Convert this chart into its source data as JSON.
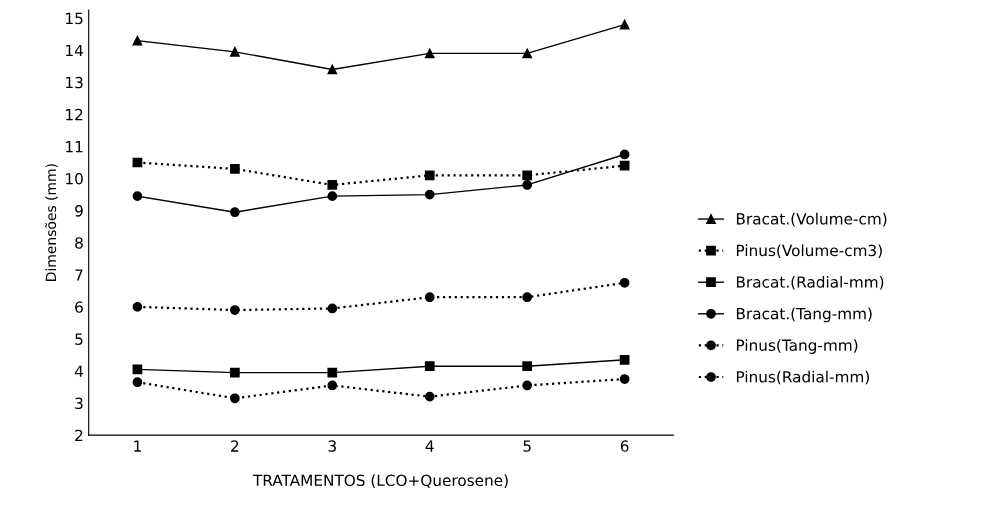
{
  "chart_data": {
    "type": "line",
    "xlabel": "TRATAMENTOS (LCO+Querosene)",
    "ylabel": "Dimensões (mm)",
    "x": [
      1,
      2,
      3,
      4,
      5,
      6
    ],
    "xlim": [
      0.5,
      6.5
    ],
    "xticks": [
      1,
      2,
      3,
      4,
      5,
      6
    ],
    "ylim": [
      2,
      15.25
    ],
    "yticks": [
      2,
      3,
      4,
      5,
      6,
      7,
      8,
      9,
      10,
      11,
      12,
      13,
      14,
      15
    ],
    "grid": false,
    "legend": "right",
    "series": [
      {
        "name": "Bracat.(Volume-cm)",
        "color": "#000000",
        "marker": "triangle",
        "line_style": "solid",
        "values": [
          14.3,
          13.95,
          13.4,
          13.9,
          13.9,
          14.8
        ]
      },
      {
        "name": "Pinus(Volume-cm3)",
        "color": "#000000",
        "marker": "square",
        "line_style": "dotted",
        "values": [
          10.5,
          10.3,
          9.8,
          10.1,
          10.1,
          10.4
        ]
      },
      {
        "name": "Bracat.(Radial-mm)",
        "color": "#000000",
        "marker": "square",
        "line_style": "solid",
        "values": [
          4.05,
          3.95,
          3.95,
          4.15,
          4.15,
          4.35
        ]
      },
      {
        "name": "Bracat.(Tang-mm)",
        "color": "#000000",
        "marker": "circle",
        "line_style": "solid",
        "values": [
          9.45,
          8.95,
          9.45,
          9.5,
          9.8,
          10.75
        ]
      },
      {
        "name": "Pinus(Tang-mm)",
        "color": "#000000",
        "marker": "circle",
        "line_style": "dotted",
        "values": [
          6.0,
          5.9,
          5.95,
          6.3,
          6.3,
          6.75
        ]
      },
      {
        "name": "Pinus(Radial-mm)",
        "color": "#000000",
        "marker": "circle",
        "line_style": "dotted",
        "values": [
          3.65,
          3.15,
          3.55,
          3.2,
          3.55,
          3.75
        ]
      }
    ]
  }
}
